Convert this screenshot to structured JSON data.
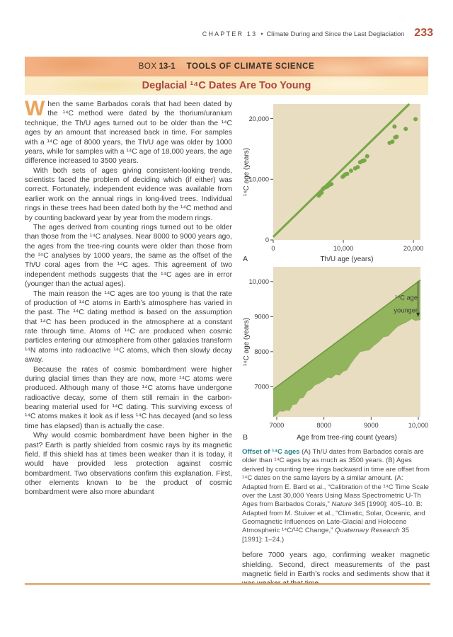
{
  "header": {
    "chapter": "CHAPTER 13",
    "separator": "•",
    "title": "Climate During and Since the Last Deglaciation",
    "page_number": "233"
  },
  "box": {
    "kicker_label": "BOX",
    "kicker_number": "13-1",
    "kicker_title": "TOOLS OF CLIMATE SCIENCE",
    "title": "Deglacial ¹⁴C Dates Are Too Young"
  },
  "article": {
    "dropcap": "W",
    "paragraphs": [
      "hen the same Barbados corals that had been dated by the ¹⁴C method were dated by the thorium/uranium technique, the Th/U ages turned out to be older than the ¹⁴C ages by an amount that increased back in time. For samples with a ¹⁴C age of 8000 years, the Th/U age was older by 1000 years, while for samples with a ¹⁴C age of 18,000 years, the age difference increased to 3500 years.",
      "With both sets of ages giving consistent-looking trends, scientists faced the problem of deciding which (if either) was correct. Fortunately, independent evidence was available from earlier work on the annual rings in long-lived trees. Individual rings in these trees had been dated both by the ¹⁴C method and by counting backward year by year from the modern rings.",
      "The ages derived from counting rings turned out to be older than those from the ¹⁴C analyses. Near 8000 to 9000 years ago, the ages from the tree-ring counts were older than those from the ¹⁴C analyses by 1000 years, the same as the offset of the Th/U coral ages from the ¹⁴C ages. This agreement of two independent methods suggests that the ¹⁴C ages are in error (younger than the actual ages).",
      "The main reason the ¹⁴C ages are too young is that the rate of production of ¹⁴C atoms in Earth’s atmosphere has varied in the past. The ¹⁴C dating method is based on the assumption that ¹⁴C has been produced in the atmosphere at a constant rate through time. Atoms of ¹⁴C are produced when cosmic particles entering our atmosphere from other galaxies transform ¹⁴N atoms into radioactive ¹⁴C atoms, which then slowly decay away.",
      "Because the rates of cosmic bombardment were higher during glacial times than they are now, more ¹⁴C atoms were produced. Although many of those ¹⁴C atoms have undergone radioactive decay, some of them still remain in the carbon-bearing material used for ¹⁴C dating. This surviving excess of ¹⁴C atoms makes it look as if less ¹⁴C has decayed (and so less time has elapsed) than is actually the case.",
      "Why would cosmic bombardment have been higher in the past? Earth is partly shielded from cosmic rays by its magnetic field. If this shield has at times been weaker than it is today, it would have provided less protection against cosmic bombardment. Two observations confirm this explanation. First, other elements known to be the product of cosmic bombardment were also more abundant"
    ],
    "continuation": "before 7000 years ago, confirming weaker magnetic shielding. Second, direct measurements of the past magnetic field in Earth’s rocks and sediments show that it was weaker at that time."
  },
  "caption": {
    "lead": "Offset of ¹⁴C ages",
    "body_1": " (A) Th/U dates from Barbados corals are older than ¹⁴C ages by as much as 3500 years. (B) Ages derived by counting tree rings backward in time are offset from ¹⁴C dates on the same layers by a similar amount. (A: Adapted from E. Bard et al., “Calibration of the ¹⁴C Time Scale over the Last 30,000 Years Using Mass Spectrometric U-Th Ages from Barbados Corals,” ",
    "italic_1": "Nature",
    "body_2": " 345 [1990]; 405–10. B: Adapted from M. Stuiver et al., “Climatic, Solar, Oceanic, and Geomagnetic Influences on Late-Glacial and Holocene Atmospheric ¹⁴C/¹²C Change,” ",
    "italic_2": "Quaternary Research",
    "body_3": " 35 [1991]: 1–24.)"
  },
  "colors": {
    "accent_red": "#b5453c",
    "page_number_red": "#c04e36",
    "band_orange": "#f2b083",
    "band_cream": "#f9ecc6",
    "chart_bg": "#e9ddc1",
    "chart_green": "#76a845",
    "band_fill_green": "#92b45c",
    "band_edge_green": "#6d9a3e",
    "caption_teal": "#27808e",
    "rule_tan": "#d9a466"
  },
  "chart_data": [
    {
      "type": "scatter",
      "panel": "A",
      "xlabel": "Th/U age (years)",
      "ylabel": "¹⁴C age (years)",
      "xlim": [
        0,
        21000
      ],
      "ylim": [
        0,
        22400
      ],
      "xticks": [
        0,
        10000,
        20000
      ],
      "yticks": [
        0,
        10000,
        20000
      ],
      "xtick_labels": [
        "0",
        "10,000",
        "20,000"
      ],
      "ytick_labels": [
        "0",
        "10,000",
        "20,000"
      ],
      "bg_color": "#e9ddc1",
      "point_color": "#76a845",
      "line_color": "#76a845",
      "reference_line": {
        "from": [
          0,
          500
        ],
        "to": [
          19400,
          22400
        ]
      },
      "points": [
        [
          6500,
          7300
        ],
        [
          6700,
          7600
        ],
        [
          6900,
          7800
        ],
        [
          7100,
          8400
        ],
        [
          7300,
          8600
        ],
        [
          7500,
          8700
        ],
        [
          7700,
          8800
        ],
        [
          7900,
          9000
        ],
        [
          8050,
          9100
        ],
        [
          8300,
          9200
        ],
        [
          9900,
          10400
        ],
        [
          10100,
          10600
        ],
        [
          10300,
          10800
        ],
        [
          10550,
          10900
        ],
        [
          11100,
          11400
        ],
        [
          11700,
          11800
        ],
        [
          12050,
          12000
        ],
        [
          12400,
          12800
        ],
        [
          12700,
          13000
        ],
        [
          13000,
          13100
        ],
        [
          13400,
          13800
        ],
        [
          16600,
          16000
        ],
        [
          17000,
          16200
        ],
        [
          17400,
          16900
        ],
        [
          17600,
          17000
        ],
        [
          17300,
          18700
        ],
        [
          18900,
          18300
        ],
        [
          20300,
          19900
        ]
      ]
    },
    {
      "type": "area",
      "panel": "B",
      "xlabel": "Age from tree-ring count (years)",
      "ylabel": "¹⁴C age (years)",
      "xlim": [
        6925,
        10045
      ],
      "ylim": [
        6140,
        10420
      ],
      "xticks": [
        7000,
        8000,
        9000,
        10000
      ],
      "yticks": [
        7000,
        8000,
        9000,
        10000
      ],
      "xtick_labels": [
        "7000",
        "8000",
        "9000",
        "10,000"
      ],
      "ytick_labels": [
        "7000",
        "8000",
        "9000",
        "10,000"
      ],
      "bg_color": "#e9ddc1",
      "fill_color": "#92b45c",
      "line_color": "#6d9a3e",
      "upper_line": [
        [
          6925,
          6925
        ],
        [
          10045,
          10045
        ]
      ],
      "lower_curve": [
        [
          6925,
          6140
        ],
        [
          7000,
          6190
        ],
        [
          7060,
          6300
        ],
        [
          7140,
          6290
        ],
        [
          7200,
          6330
        ],
        [
          7270,
          6310
        ],
        [
          7340,
          6480
        ],
        [
          7420,
          6500
        ],
        [
          7490,
          6660
        ],
        [
          7570,
          6690
        ],
        [
          7650,
          6870
        ],
        [
          7730,
          6920
        ],
        [
          7810,
          7040
        ],
        [
          7900,
          7090
        ],
        [
          8000,
          7170
        ],
        [
          8080,
          7260
        ],
        [
          8160,
          7240
        ],
        [
          8250,
          7340
        ],
        [
          8330,
          7320
        ],
        [
          8410,
          7430
        ],
        [
          8490,
          7470
        ],
        [
          8570,
          7650
        ],
        [
          8670,
          7830
        ],
        [
          8770,
          7990
        ],
        [
          8870,
          8020
        ],
        [
          8960,
          8040
        ],
        [
          9060,
          8170
        ],
        [
          9160,
          8270
        ],
        [
          9260,
          8410
        ],
        [
          9360,
          8440
        ],
        [
          9460,
          8580
        ],
        [
          9560,
          8710
        ],
        [
          9660,
          8780
        ],
        [
          9760,
          8840
        ],
        [
          9860,
          8930
        ],
        [
          9930,
          8880
        ],
        [
          10045,
          8900
        ]
      ],
      "annotation": {
        "lines": [
          "¹⁴C age",
          "younger"
        ],
        "text_x": 9985,
        "text_y": [
          9480,
          9120
        ],
        "arrow_x": 9995,
        "arrow_from": 10010,
        "arrow_to": 8990
      }
    }
  ]
}
